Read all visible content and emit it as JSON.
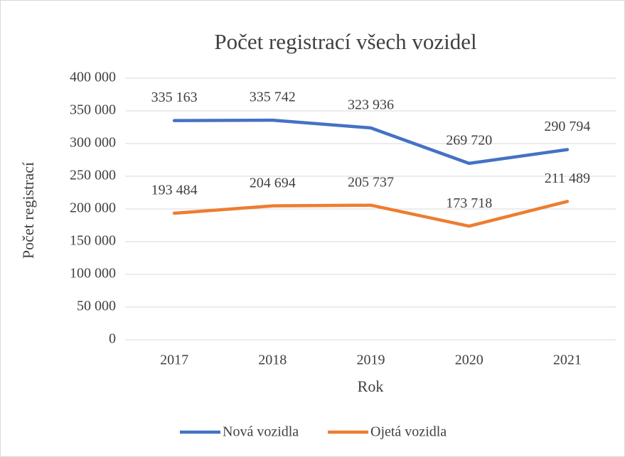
{
  "chart_data": {
    "type": "line",
    "title": "Počet registrací všech vozidel",
    "x_label": "Rok",
    "y_label": "Počet registrací",
    "categories": [
      "2017",
      "2018",
      "2019",
      "2020",
      "2021"
    ],
    "series": [
      {
        "name": "Nová vozidla",
        "color": "#4472c4",
        "values": [
          335163,
          335742,
          323936,
          269720,
          290794
        ],
        "value_labels": [
          "335 163",
          "335 742",
          "323 936",
          "269 720",
          "290 794"
        ]
      },
      {
        "name": "Ojetá vozidla",
        "color": "#ed7d31",
        "values": [
          193484,
          204694,
          205737,
          173718,
          211489
        ],
        "value_labels": [
          "193 484",
          "204 694",
          "205 737",
          "173 718",
          "211 489"
        ]
      }
    ],
    "ylim": [
      0,
      400000
    ],
    "yticks": [
      0,
      {
        "value": 50000,
        "label": "50 000"
      },
      {
        "value": 100000,
        "label": "100 000"
      },
      {
        "value": 150000,
        "label": "150 000"
      },
      {
        "value": 200000,
        "label": "200 000"
      },
      {
        "value": 250000,
        "label": "250 000"
      },
      {
        "value": 300000,
        "label": "300 000"
      },
      {
        "value": 350000,
        "label": "350 000"
      },
      {
        "value": 400000,
        "label": "400 000"
      }
    ],
    "grid": true,
    "legend": "bottom"
  }
}
